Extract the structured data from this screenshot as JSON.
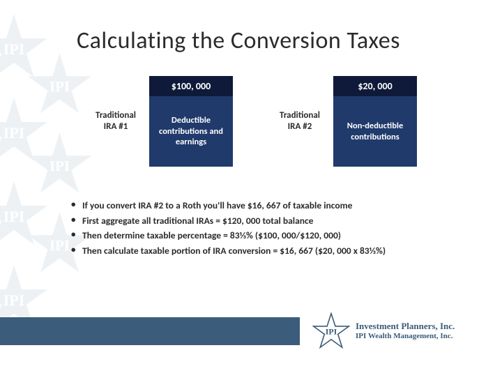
{
  "title": "Calculating the Conversion Taxes",
  "boxes": [
    {
      "sideLabel": "Traditional IRA #1",
      "header": "$100, 000",
      "body": "Deductible contributions and earnings",
      "headerBg": "#0f1a3a",
      "bodyBg": "#203a6b",
      "textColor": "#ffffff"
    },
    {
      "sideLabel": "Traditional IRA #2",
      "header": "$20, 000",
      "body": "Non-deductible contributions",
      "headerBg": "#0f1a3a",
      "bodyBg": "#203a6b",
      "textColor": "#ffffff"
    }
  ],
  "bullets": [
    "If you convert IRA #2 to a Roth you'll have $16, 667 of taxable income",
    "First aggregate all traditional IRAs = $120, 000 total balance",
    "Then determine taxable percentage = 83⅓% ($100, 000/$120, 000)",
    "Then calculate taxable portion of IRA conversion = $16, 667 ($20, 000 x 83⅓%)"
  ],
  "footer": {
    "barColor": "#3b5c7a",
    "logoLine1": "Investment Planners, Inc.",
    "logoLine2": "IPI Wealth Management, Inc.",
    "logoAbbrev": "IPI"
  },
  "watermark": {
    "fill": "#3b5c7a"
  }
}
